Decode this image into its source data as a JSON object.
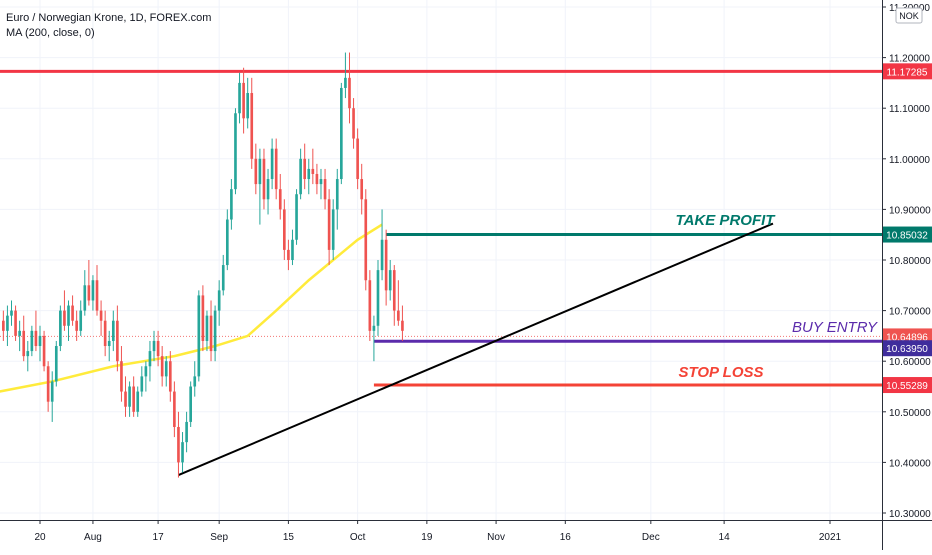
{
  "header": {
    "symbol_title": "Euro / Norwegian Krone, 1D, FOREX.com",
    "indicator": "MA (200, close, 0)"
  },
  "currency_badge": "NOK",
  "chart_data": {
    "type": "candlestick",
    "title": "Euro / Norwegian Krone, 1D, FOREX.com",
    "y_ticks": [
      "11.30000",
      "11.20000",
      "11.10000",
      "11.00000",
      "10.90000",
      "10.80000",
      "10.70000",
      "10.60000",
      "10.50000",
      "10.40000",
      "10.30000"
    ],
    "y_tick_values": [
      11.3,
      11.2,
      11.1,
      11.0,
      10.9,
      10.8,
      10.7,
      10.6,
      10.5,
      10.4,
      10.3
    ],
    "ylim": [
      10.3,
      11.3
    ],
    "x_ticks": [
      "20",
      "Aug",
      "17",
      "Sep",
      "15",
      "Oct",
      "19",
      "Nov",
      "16",
      "Dec",
      "14",
      "2021"
    ],
    "x_tick_days": [
      2,
      15,
      31,
      46,
      63,
      80,
      97,
      114,
      131,
      152,
      170,
      196
    ],
    "xlim": [
      -8,
      204
    ],
    "candles": [
      [
        -7,
        10.68,
        10.7,
        10.64,
        10.66
      ],
      [
        -6,
        10.66,
        10.71,
        10.63,
        10.69
      ],
      [
        -5,
        10.69,
        10.72,
        10.67,
        10.7
      ],
      [
        -4,
        10.7,
        10.71,
        10.64,
        10.65
      ],
      [
        -3,
        10.65,
        10.68,
        10.62,
        10.66
      ],
      [
        -2,
        10.66,
        10.69,
        10.6,
        10.61
      ],
      [
        -1,
        10.61,
        10.64,
        10.58,
        10.62
      ],
      [
        0,
        10.62,
        10.67,
        10.61,
        10.66
      ],
      [
        1,
        10.66,
        10.7,
        10.62,
        10.63
      ],
      [
        2,
        10.63,
        10.67,
        10.6,
        10.65
      ],
      [
        3,
        10.65,
        10.66,
        10.58,
        10.59
      ],
      [
        4,
        10.59,
        10.6,
        10.5,
        10.52
      ],
      [
        5,
        10.52,
        10.58,
        10.48,
        10.56
      ],
      [
        6,
        10.56,
        10.64,
        10.55,
        10.63
      ],
      [
        7,
        10.63,
        10.71,
        10.62,
        10.7
      ],
      [
        8,
        10.7,
        10.74,
        10.66,
        10.67
      ],
      [
        9,
        10.67,
        10.72,
        10.64,
        10.71
      ],
      [
        10,
        10.71,
        10.73,
        10.67,
        10.68
      ],
      [
        11,
        10.68,
        10.7,
        10.64,
        10.66
      ],
      [
        12,
        10.66,
        10.72,
        10.65,
        10.7
      ],
      [
        13,
        10.7,
        10.78,
        10.69,
        10.75
      ],
      [
        14,
        10.75,
        10.8,
        10.71,
        10.72
      ],
      [
        15,
        10.72,
        10.77,
        10.7,
        10.76
      ],
      [
        16,
        10.76,
        10.79,
        10.69,
        10.7
      ],
      [
        17,
        10.7,
        10.72,
        10.65,
        10.68
      ],
      [
        18,
        10.68,
        10.7,
        10.61,
        10.63
      ],
      [
        19,
        10.63,
        10.66,
        10.6,
        10.64
      ],
      [
        20,
        10.64,
        10.7,
        10.62,
        10.68
      ],
      [
        21,
        10.68,
        10.71,
        10.58,
        10.6
      ],
      [
        22,
        10.6,
        10.63,
        10.52,
        10.54
      ],
      [
        23,
        10.54,
        10.57,
        10.49,
        10.51
      ],
      [
        24,
        10.51,
        10.56,
        10.49,
        10.55
      ],
      [
        25,
        10.55,
        10.57,
        10.49,
        10.5
      ],
      [
        26,
        10.5,
        10.55,
        10.49,
        10.54
      ],
      [
        27,
        10.54,
        10.59,
        10.53,
        10.57
      ],
      [
        28,
        10.57,
        10.6,
        10.54,
        10.59
      ],
      [
        29,
        10.59,
        10.64,
        10.56,
        10.62
      ],
      [
        30,
        10.62,
        10.66,
        10.6,
        10.64
      ],
      [
        31,
        10.64,
        10.66,
        10.59,
        10.61
      ],
      [
        32,
        10.61,
        10.63,
        10.55,
        10.57
      ],
      [
        33,
        10.57,
        10.61,
        10.55,
        10.6
      ],
      [
        34,
        10.6,
        10.62,
        10.52,
        10.54
      ],
      [
        35,
        10.54,
        10.56,
        10.45,
        10.47
      ],
      [
        36,
        10.47,
        10.5,
        10.37,
        10.4
      ],
      [
        37,
        10.4,
        10.46,
        10.38,
        10.44
      ],
      [
        38,
        10.44,
        10.5,
        10.42,
        10.48
      ],
      [
        39,
        10.48,
        10.56,
        10.47,
        10.55
      ],
      [
        40,
        10.55,
        10.6,
        10.53,
        10.57
      ],
      [
        41,
        10.57,
        10.74,
        10.56,
        10.73
      ],
      [
        42,
        10.73,
        10.75,
        10.62,
        10.64
      ],
      [
        43,
        10.64,
        10.7,
        10.62,
        10.69
      ],
      [
        44,
        10.69,
        10.72,
        10.6,
        10.62
      ],
      [
        45,
        10.62,
        10.71,
        10.6,
        10.7
      ],
      [
        46,
        10.7,
        10.76,
        10.67,
        10.74
      ],
      [
        47,
        10.74,
        10.81,
        10.73,
        10.79
      ],
      [
        48,
        10.79,
        10.9,
        10.78,
        10.88
      ],
      [
        49,
        10.88,
        10.96,
        10.86,
        10.94
      ],
      [
        50,
        10.94,
        11.1,
        10.93,
        11.09
      ],
      [
        51,
        11.09,
        11.17,
        11.07,
        11.15
      ],
      [
        52,
        11.15,
        11.18,
        11.05,
        11.08
      ],
      [
        53,
        11.08,
        11.16,
        11.06,
        11.13
      ],
      [
        54,
        11.13,
        11.16,
        10.98,
        11.0
      ],
      [
        55,
        11.0,
        11.03,
        10.93,
        10.95
      ],
      [
        56,
        10.95,
        11.02,
        10.87,
        11.0
      ],
      [
        57,
        11.0,
        11.02,
        10.9,
        10.92
      ],
      [
        58,
        10.92,
        10.98,
        10.89,
        10.96
      ],
      [
        59,
        10.96,
        11.04,
        10.94,
        11.02
      ],
      [
        60,
        11.02,
        11.04,
        10.92,
        10.94
      ],
      [
        61,
        10.94,
        10.97,
        10.88,
        10.9
      ],
      [
        62,
        10.9,
        10.92,
        10.8,
        10.82
      ],
      [
        63,
        10.82,
        10.84,
        10.78,
        10.8
      ],
      [
        64,
        10.8,
        10.86,
        10.79,
        10.84
      ],
      [
        65,
        10.84,
        10.94,
        10.83,
        10.93
      ],
      [
        66,
        10.93,
        11.02,
        10.92,
        11.0
      ],
      [
        67,
        11.0,
        11.03,
        10.94,
        10.96
      ],
      [
        68,
        10.96,
        11.0,
        10.93,
        10.98
      ],
      [
        69,
        10.98,
        11.02,
        10.95,
        10.97
      ],
      [
        70,
        10.97,
        10.99,
        10.93,
        10.95
      ],
      [
        71,
        10.95,
        10.98,
        10.92,
        10.96
      ],
      [
        72,
        10.96,
        10.98,
        10.9,
        10.92
      ],
      [
        73,
        10.92,
        10.94,
        10.79,
        10.82
      ],
      [
        74,
        10.82,
        10.92,
        10.8,
        10.9
      ],
      [
        75,
        10.9,
        10.98,
        10.86,
        10.96
      ],
      [
        76,
        10.96,
        11.15,
        10.95,
        11.14
      ],
      [
        77,
        11.14,
        11.21,
        11.12,
        11.16
      ],
      [
        78,
        11.16,
        11.21,
        11.07,
        11.1
      ],
      [
        79,
        11.1,
        11.12,
        11.02,
        11.04
      ],
      [
        80,
        11.04,
        11.06,
        10.94,
        10.96
      ],
      [
        81,
        10.96,
        10.99,
        10.89,
        10.92
      ],
      [
        82,
        10.92,
        10.94,
        10.74,
        10.76
      ],
      [
        83,
        10.76,
        10.78,
        10.64,
        10.66
      ],
      [
        84,
        10.66,
        10.69,
        10.6,
        10.67
      ],
      [
        85,
        10.67,
        10.8,
        10.65,
        10.78
      ],
      [
        86,
        10.78,
        10.9,
        10.76,
        10.84
      ],
      [
        87,
        10.84,
        10.86,
        10.71,
        10.74
      ],
      [
        88,
        10.74,
        10.8,
        10.72,
        10.78
      ],
      [
        89,
        10.78,
        10.79,
        10.67,
        10.7
      ],
      [
        90,
        10.7,
        10.76,
        10.67,
        10.68
      ],
      [
        91,
        10.68,
        10.71,
        10.64,
        10.66
      ]
    ],
    "ma_line": {
      "label": "MA (200, close, 0)",
      "color": "#ffeb3b",
      "points": [
        [
          -8,
          10.54
        ],
        [
          5,
          10.56
        ],
        [
          20,
          10.59
        ],
        [
          35,
          10.61
        ],
        [
          45,
          10.63
        ],
        [
          53,
          10.65
        ],
        [
          60,
          10.7
        ],
        [
          68,
          10.76
        ],
        [
          74,
          10.8
        ],
        [
          80,
          10.84
        ],
        [
          86,
          10.87
        ]
      ]
    },
    "support_trendline": {
      "color": "#000000",
      "points": [
        [
          36,
          10.375
        ],
        [
          182,
          10.872
        ]
      ]
    },
    "resistance_line": {
      "color": "#f23645",
      "y": 11.17285
    },
    "horizontal_levels": [
      {
        "name": "TAKE PROFIT",
        "y": 10.85032,
        "x_start": 87,
        "color": "#00796b"
      },
      {
        "name": "BUY ENTRY",
        "y": 10.6395,
        "x_start": 84,
        "color": "#5b2bab"
      },
      {
        "name": "STOP LOSS",
        "y": 10.55289,
        "x_start": 84,
        "color": "#f44336"
      }
    ],
    "current_price": {
      "y": 10.64896,
      "color": "#ef5350"
    },
    "price_labels": [
      {
        "text": "11.17285",
        "y": 11.17285,
        "color": "#f23645"
      },
      {
        "text": "10.85032",
        "y": 10.85032,
        "color": "#00796b"
      },
      {
        "text": "10.64896",
        "y": 10.64896,
        "color": "#ef5350"
      },
      {
        "text": "10.63950",
        "y": 10.6395,
        "color": "#3f2d9c"
      },
      {
        "text": "10.55289",
        "y": 10.55289,
        "color": "#f23645"
      }
    ],
    "up_color": "#26a69a",
    "down_color": "#ef5350",
    "grid": true
  }
}
